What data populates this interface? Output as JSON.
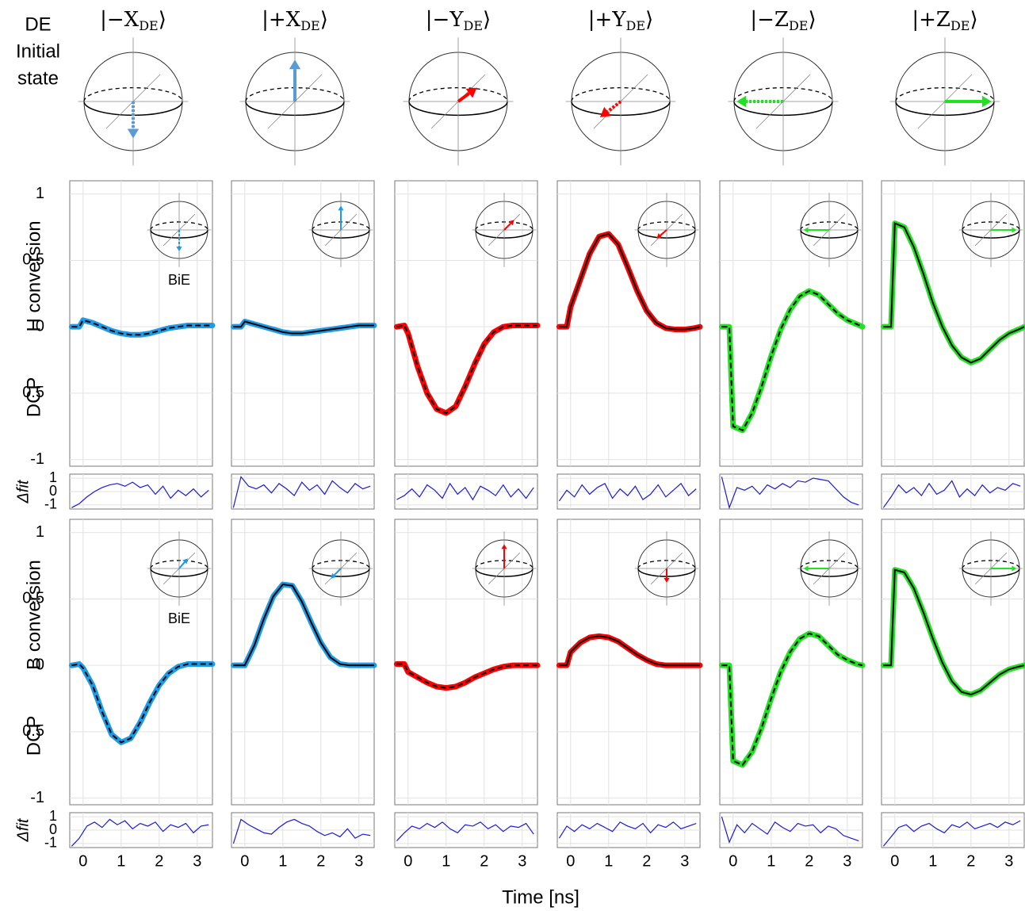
{
  "header": {
    "lines": [
      "DE",
      "Initial",
      "state"
    ]
  },
  "states": [
    {
      "prefix": "|−X",
      "subscript": "DE",
      "suffix": "⟩"
    },
    {
      "prefix": "|+X",
      "subscript": "DE",
      "suffix": "⟩"
    },
    {
      "prefix": "|−Y",
      "subscript": "DE",
      "suffix": "⟩"
    },
    {
      "prefix": "|+Y",
      "subscript": "DE",
      "suffix": "⟩"
    },
    {
      "prefix": "|−Z",
      "subscript": "DE",
      "suffix": "⟩"
    },
    {
      "prefix": "|+Z",
      "subscript": "DE",
      "suffix": "⟩"
    }
  ],
  "chart_data": {
    "type": "line",
    "xlabel": "Time [ns]",
    "x": [
      -0.3,
      -0.1,
      0,
      0.25,
      0.5,
      0.75,
      1,
      1.25,
      1.5,
      1.75,
      2,
      2.25,
      2.5,
      2.75,
      3,
      3.25,
      3.4
    ],
    "xlim": [
      -0.35,
      3.4
    ],
    "xticks": [
      0,
      1,
      2,
      3
    ],
    "ylim": [
      -1.05,
      1.1
    ],
    "yticks": [
      1,
      0.5,
      0,
      {
        "value": -0.5,
        "label": "0.5"
      },
      -1
    ],
    "grid": true,
    "residual": {
      "ylabel": "Δfit",
      "color": "#1a1ad6",
      "x": [
        -0.3,
        -0.1,
        0.1,
        0.3,
        0.5,
        0.7,
        0.9,
        1.1,
        1.3,
        1.5,
        1.7,
        1.9,
        2.1,
        2.3,
        2.5,
        2.7,
        2.9,
        3.1,
        3.3
      ],
      "ylim": [
        -1.3,
        1.3
      ],
      "yticks": [
        1,
        0,
        -1
      ]
    },
    "rows": [
      {
        "ylabel": [
          "H conversion",
          "DCP"
        ],
        "annotation": "BiE",
        "series": [
          {
            "color": "#1e9be6",
            "values": [
              0,
              0,
              0.05,
              0.03,
              0,
              -0.03,
              -0.05,
              -0.06,
              -0.06,
              -0.05,
              -0.03,
              -0.01,
              0,
              0.01,
              0.01,
              0.01,
              0.01
            ],
            "residual": [
              -1.2,
              -0.9,
              -0.4,
              0,
              0.3,
              0.5,
              0.6,
              0.4,
              0.7,
              0.3,
              0.5,
              -0.2,
              0.4,
              -0.5,
              0.1,
              -0.3,
              0.2,
              -0.4,
              0.1
            ]
          },
          {
            "color": "#1e9be6",
            "values": [
              0,
              0,
              0.04,
              0.02,
              0,
              -0.02,
              -0.04,
              -0.05,
              -0.05,
              -0.04,
              -0.03,
              -0.02,
              -0.01,
              0,
              0.01,
              0.01,
              0.01
            ],
            "residual": [
              -1.2,
              1.1,
              0.4,
              0.2,
              0.5,
              -0.1,
              0.6,
              0.2,
              -0.3,
              0.7,
              0.1,
              0.5,
              -0.2,
              0.8,
              0.3,
              -0.1,
              0.6,
              0.2,
              0.4
            ]
          },
          {
            "color": "#ff0000",
            "values": [
              0,
              0.01,
              -0.05,
              -0.3,
              -0.5,
              -0.62,
              -0.65,
              -0.6,
              -0.45,
              -0.28,
              -0.13,
              -0.04,
              0,
              0.01,
              0.01,
              0.01,
              0.01
            ],
            "residual": [
              -0.6,
              -0.3,
              0.2,
              -0.4,
              0.5,
              0.1,
              -0.5,
              0.6,
              -0.2,
              0.3,
              -0.6,
              0.4,
              0.1,
              -0.3,
              0.5,
              -0.4,
              0.2,
              -0.5,
              0.3
            ]
          },
          {
            "color": "#ff0000",
            "values": [
              0,
              0,
              0.15,
              0.35,
              0.55,
              0.68,
              0.7,
              0.62,
              0.45,
              0.27,
              0.12,
              0.03,
              -0.01,
              -0.02,
              -0.02,
              -0.01,
              0
            ],
            "residual": [
              -0.7,
              0.1,
              -0.4,
              0.5,
              -0.2,
              0.3,
              0.6,
              -0.5,
              0.2,
              -0.3,
              0.4,
              -0.6,
              -0.2,
              0.5,
              -0.4,
              0.1,
              0.6,
              -0.3,
              0.2
            ]
          },
          {
            "color": "#22e022",
            "values": [
              0,
              0,
              -0.75,
              -0.78,
              -0.65,
              -0.45,
              -0.22,
              -0.02,
              0.13,
              0.23,
              0.27,
              0.24,
              0.17,
              0.1,
              0.05,
              0.02,
              0
            ],
            "residual": [
              1.1,
              -1.2,
              0.3,
              0.1,
              0.4,
              -0.2,
              0.5,
              0.2,
              0.6,
              0.3,
              0.8,
              0.7,
              1.0,
              0.9,
              0.8,
              0.2,
              -0.4,
              -0.8,
              -1.0
            ]
          },
          {
            "color": "#22e022",
            "values": [
              0,
              0,
              0.78,
              0.75,
              0.6,
              0.4,
              0.18,
              0,
              -0.14,
              -0.23,
              -0.27,
              -0.24,
              -0.17,
              -0.1,
              -0.05,
              -0.02,
              0
            ],
            "residual": [
              -1.2,
              -0.4,
              0.5,
              -0.1,
              0.3,
              -0.3,
              0.6,
              -0.2,
              0.1,
              0.8,
              -0.4,
              0.2,
              -0.3,
              0.5,
              -0.1,
              0.3,
              0.1,
              0.6,
              0.4
            ]
          }
        ]
      },
      {
        "ylabel": [
          "B conversion",
          "DCP"
        ],
        "annotation": "BiE",
        "series": [
          {
            "color": "#1e9be6",
            "values": [
              0,
              0.01,
              -0.02,
              -0.15,
              -0.35,
              -0.52,
              -0.58,
              -0.55,
              -0.43,
              -0.28,
              -0.15,
              -0.06,
              -0.01,
              0.01,
              0.01,
              0.01,
              0.01
            ],
            "residual": [
              -1.2,
              -0.6,
              0.3,
              0.6,
              0.2,
              0.8,
              0.4,
              0.7,
              0.1,
              0.5,
              0.3,
              0.6,
              -0.1,
              0.4,
              0.2,
              0.5,
              -0.2,
              0.3,
              0.4
            ]
          },
          {
            "color": "#1e9be6",
            "values": [
              0,
              0,
              0,
              0.15,
              0.35,
              0.52,
              0.61,
              0.6,
              0.48,
              0.32,
              0.17,
              0.06,
              0.01,
              0,
              0,
              0,
              0
            ],
            "residual": [
              -1.0,
              0.8,
              0.4,
              0.1,
              -0.2,
              -0.3,
              0.2,
              0.6,
              0.8,
              0.5,
              0.3,
              -0.1,
              -0.4,
              -0.2,
              -0.5,
              0.1,
              -0.6,
              -0.3,
              -0.4
            ]
          },
          {
            "color": "#ff0000",
            "values": [
              0.01,
              0.01,
              -0.05,
              -0.09,
              -0.13,
              -0.16,
              -0.17,
              -0.16,
              -0.13,
              -0.09,
              -0.06,
              -0.03,
              -0.01,
              0,
              0,
              0,
              0
            ],
            "residual": [
              -0.8,
              -0.2,
              0.3,
              0.1,
              0.5,
              0.2,
              0.6,
              0.1,
              -0.2,
              0.4,
              0.3,
              0.6,
              0.1,
              0.4,
              -0.1,
              0.3,
              0.2,
              0.5,
              -0.3
            ]
          },
          {
            "color": "#ff0000",
            "values": [
              0,
              0,
              0.1,
              0.17,
              0.21,
              0.22,
              0.21,
              0.18,
              0.13,
              0.08,
              0.04,
              0.01,
              0,
              0,
              0,
              0,
              0
            ],
            "residual": [
              -0.6,
              0.3,
              -0.1,
              0.4,
              0.1,
              0.5,
              0.2,
              -0.1,
              0.6,
              0.3,
              0.1,
              0.5,
              -0.2,
              0.4,
              0.2,
              0.6,
              0.1,
              0.3,
              0.5
            ]
          },
          {
            "color": "#22e022",
            "values": [
              0,
              0,
              -0.72,
              -0.75,
              -0.65,
              -0.47,
              -0.25,
              -0.05,
              0.1,
              0.2,
              0.24,
              0.22,
              0.15,
              0.08,
              0.04,
              0.01,
              0
            ],
            "residual": [
              1.0,
              -0.9,
              0.4,
              -0.2,
              0.5,
              0.1,
              -0.3,
              0.6,
              0.2,
              -0.1,
              0.5,
              0.3,
              0.4,
              -0.2,
              0.3,
              0.1,
              -0.4,
              -0.6,
              -0.8
            ]
          },
          {
            "color": "#22e022",
            "values": [
              0,
              0,
              0.72,
              0.7,
              0.58,
              0.4,
              0.2,
              0.02,
              -0.12,
              -0.2,
              -0.22,
              -0.19,
              -0.13,
              -0.07,
              -0.03,
              -0.01,
              0
            ],
            "residual": [
              -1.2,
              -0.5,
              0.2,
              0.4,
              -0.1,
              0.3,
              0.5,
              0.1,
              -0.2,
              0.4,
              0.2,
              0.6,
              0.1,
              0.3,
              0.5,
              0.2,
              0.6,
              0.4,
              0.7
            ]
          }
        ]
      }
    ]
  }
}
